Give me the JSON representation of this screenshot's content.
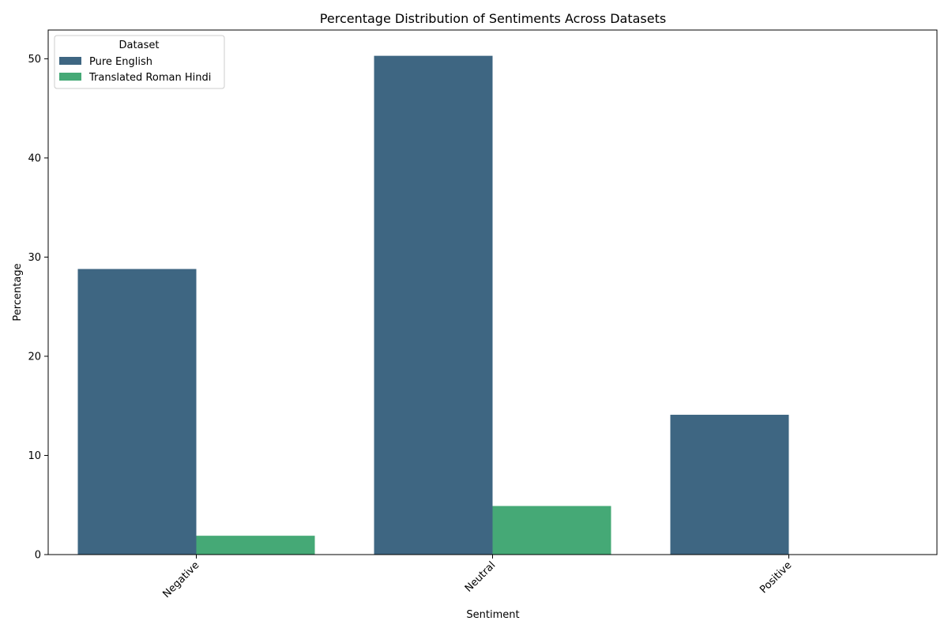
{
  "chart_data": {
    "type": "bar",
    "title": "Percentage Distribution of Sentiments Across Datasets",
    "xlabel": "Sentiment",
    "ylabel": "Percentage",
    "categories": [
      "Negative",
      "Neutral",
      "Positive"
    ],
    "series": [
      {
        "name": "Pure English",
        "values": [
          28.8,
          50.3,
          14.1
        ],
        "color": "#3e6682"
      },
      {
        "name": "Translated Roman Hindi",
        "values": [
          1.9,
          4.9,
          0.0
        ],
        "color": "#45a976"
      }
    ],
    "ylim": [
      0,
      52.9
    ],
    "yticks": [
      0,
      10,
      20,
      30,
      40,
      50
    ],
    "grid": false,
    "legend": {
      "title": "Dataset",
      "placement": "upper-left"
    }
  }
}
